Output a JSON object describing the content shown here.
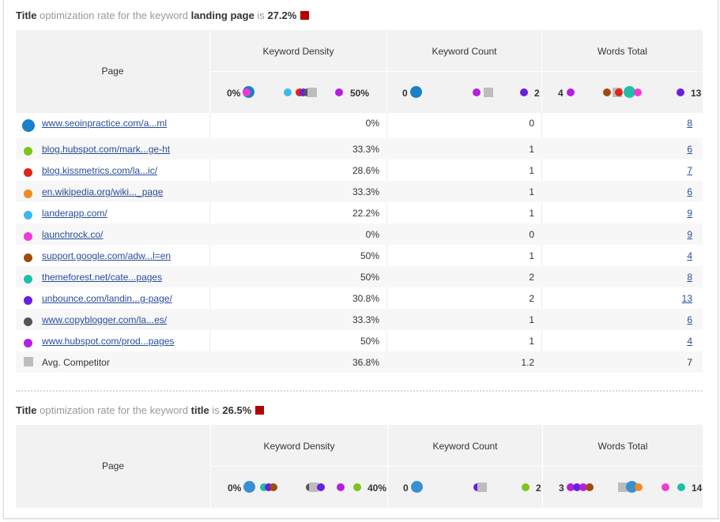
{
  "sections": [
    {
      "title_prefix": "Title",
      "title_mid": "optimization rate for the keyword",
      "keyword": "landing page",
      "title_is": "is",
      "rate": "27.2%",
      "headers": {
        "page": "Page",
        "density": "Keyword Density",
        "count": "Keyword Count",
        "words": "Words Total"
      },
      "scales": {
        "density": {
          "min": "0%",
          "max": "50%"
        },
        "count": {
          "min": "0",
          "max": "2"
        },
        "words": {
          "min": "4",
          "max": "13"
        }
      },
      "rows": [
        {
          "page": "www.seoinpractice.com/a...ml",
          "density": "0%",
          "count": "0",
          "words": "8",
          "color": "#1a7fc8"
        },
        {
          "page": "blog.hubspot.com/mark...ge-ht",
          "density": "33.3%",
          "count": "1",
          "words": "6",
          "color": "#7dc31e"
        },
        {
          "page": "blog.kissmetrics.com/la...ic/",
          "density": "28.6%",
          "count": "1",
          "words": "7",
          "color": "#e3241b"
        },
        {
          "page": "en.wikipedia.org/wiki..._page",
          "density": "33.3%",
          "count": "1",
          "words": "6",
          "color": "#f08a24"
        },
        {
          "page": "landerapp.com/",
          "density": "22.2%",
          "count": "1",
          "words": "9",
          "color": "#3db8ee"
        },
        {
          "page": "launchrock.co/",
          "density": "0%",
          "count": "0",
          "words": "9",
          "color": "#f03ad6"
        },
        {
          "page": "support.google.com/adw...l=en",
          "density": "50%",
          "count": "1",
          "words": "4",
          "color": "#a04a10"
        },
        {
          "page": "themeforest.net/cate...pages",
          "density": "50%",
          "count": "2",
          "words": "8",
          "color": "#1fbea8"
        },
        {
          "page": "unbounce.com/landin...g-page/",
          "density": "30.8%",
          "count": "2",
          "words": "13",
          "color": "#6a1ee0"
        },
        {
          "page": "www.copyblogger.com/la...es/",
          "density": "33.3%",
          "count": "1",
          "words": "6",
          "color": "#555555"
        },
        {
          "page": "www.hubspot.com/prod...pages",
          "density": "50%",
          "count": "1",
          "words": "4",
          "color": "#b51ee0"
        }
      ],
      "average": {
        "page": "Avg. Competitor",
        "density": "36.8%",
        "count": "1.2",
        "words": "7"
      }
    },
    {
      "title_prefix": "Title",
      "title_mid": "optimization rate for the keyword",
      "keyword": "title",
      "title_is": "is",
      "rate": "26.5%",
      "headers": {
        "page": "Page",
        "density": "Keyword Density",
        "count": "Keyword Count",
        "words": "Words Total"
      },
      "scales": {
        "density": {
          "min": "0%",
          "max": "40%"
        },
        "count": {
          "min": "0",
          "max": "2"
        },
        "words": {
          "min": "3",
          "max": "14"
        }
      }
    }
  ],
  "colors": {
    "flag": "#b20000",
    "avg_marker": "#bdbdbd"
  }
}
